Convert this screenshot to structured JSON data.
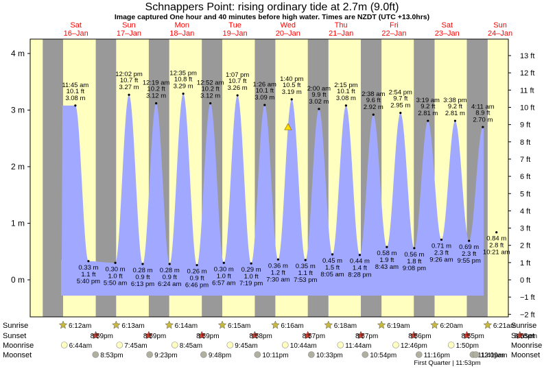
{
  "title": "Schnappers Point: rising  ordinary tide at 2.7m (9.0ft)",
  "subtitle": "Image captured One hour and 40 minutes before high water. Times are NZDT (UTC +13.0hrs)",
  "colors": {
    "day": "#ffffc0",
    "night": "#999999",
    "tide_fill": "#a0a8ff",
    "date_label": "#ff0000",
    "current_marker": "#ffdd00",
    "moon_symbol": "#b0b0a0",
    "moonrise_symbol": "#ffffc0",
    "sun_symbol": "#c8b840",
    "sunset_symbol": "#d04030"
  },
  "days": [
    {
      "dow": "Sat",
      "date": "16–Jan"
    },
    {
      "dow": "Sun",
      "date": "17–Jan"
    },
    {
      "dow": "Mon",
      "date": "18–Jan"
    },
    {
      "dow": "Tue",
      "date": "19–Jan"
    },
    {
      "dow": "Wed",
      "date": "20–Jan"
    },
    {
      "dow": "Thu",
      "date": "21–Jan"
    },
    {
      "dow": "Fri",
      "date": "22–Jan"
    },
    {
      "dow": "Sat",
      "date": "23–Jan"
    },
    {
      "dow": "Sun",
      "date": "24–Jan"
    }
  ],
  "chart_data": {
    "type": "area",
    "y_unit_left": "m",
    "y_unit_right": "ft",
    "ylim_m": [
      -0.55,
      4.25
    ],
    "left_ticks": [
      "0 m",
      "1 m",
      "2 m",
      "3 m",
      "4 m"
    ],
    "left_tick_values": [
      0,
      1,
      2,
      3,
      4
    ],
    "right_ticks": [
      "−2 ft",
      "−1 ft",
      "0 ft",
      "1 ft",
      "2 ft",
      "3 ft",
      "4 ft",
      "5 ft",
      "6 ft",
      "7 ft",
      "8 ft",
      "9 ft",
      "10 ft",
      "11 ft",
      "12 ft",
      "13 ft"
    ],
    "right_tick_values_ft": [
      -2,
      -1,
      0,
      1,
      2,
      3,
      4,
      5,
      6,
      7,
      8,
      9,
      10,
      11,
      12,
      13
    ],
    "high_tides": [
      {
        "day": 0,
        "time": "11:45 am",
        "ft": "10.1 ft",
        "m": "3.08 m",
        "value": 3.08,
        "hour": 11.75
      },
      {
        "day": 1,
        "time": "12:02 pm",
        "ft": "10.7 ft",
        "m": "3.27 m",
        "value": 3.27,
        "hour": 12.03
      },
      {
        "day": 2,
        "time": "12:19 am",
        "ft": "10.2 ft",
        "m": "3.12 m",
        "value": 3.12,
        "hour": 0.32
      },
      {
        "day": 2,
        "time": "12:35 pm",
        "ft": "10.8 ft",
        "m": "3.29 m",
        "value": 3.29,
        "hour": 12.58
      },
      {
        "day": 3,
        "time": "12:52 am",
        "ft": "10.2 ft",
        "m": "3.12 m",
        "value": 3.12,
        "hour": 0.87
      },
      {
        "day": 3,
        "time": "1:07 pm",
        "ft": "10.7 ft",
        "m": "3.26 m",
        "value": 3.26,
        "hour": 13.12
      },
      {
        "day": 4,
        "time": "1:26 am",
        "ft": "10.1 ft",
        "m": "3.09 m",
        "value": 3.09,
        "hour": 1.43
      },
      {
        "day": 4,
        "time": "1:40 pm",
        "ft": "10.5 ft",
        "m": "3.19 m",
        "value": 3.19,
        "hour": 13.67
      },
      {
        "day": 5,
        "time": "2:00 am",
        "ft": "9.9 ft",
        "m": "3.02 m",
        "value": 3.02,
        "hour": 2.0
      },
      {
        "day": 5,
        "time": "2:15 pm",
        "ft": "10.1 ft",
        "m": "3.08 m",
        "value": 3.08,
        "hour": 14.25
      },
      {
        "day": 6,
        "time": "2:38 am",
        "ft": "9.6 ft",
        "m": "2.92 m",
        "value": 2.92,
        "hour": 2.63
      },
      {
        "day": 6,
        "time": "2:54 pm",
        "ft": "9.7 ft",
        "m": "2.95 m",
        "value": 2.95,
        "hour": 14.9
      },
      {
        "day": 7,
        "time": "3:19 am",
        "ft": "9.2 ft",
        "m": "2.81 m",
        "value": 2.81,
        "hour": 3.32
      },
      {
        "day": 7,
        "time": "3:38 pm",
        "ft": "9.2 ft",
        "m": "2.81 m",
        "value": 2.81,
        "hour": 15.63
      },
      {
        "day": 8,
        "time": "4:11 am",
        "ft": "8.9 ft",
        "m": "2.70 m",
        "value": 2.7,
        "hour": 4.18
      }
    ],
    "low_tides": [
      {
        "day": 0,
        "time": "5:40 pm",
        "ft": "1.1 ft",
        "m": "0.33 m",
        "value": 0.33,
        "hour": 17.67
      },
      {
        "day": 1,
        "time": "5:50 am",
        "ft": "1.0 ft",
        "m": "0.30 m",
        "value": 0.3,
        "hour": 5.83
      },
      {
        "day": 1,
        "time": "6:13 pm",
        "ft": "0.9 ft",
        "m": "0.28 m",
        "value": 0.28,
        "hour": 18.22
      },
      {
        "day": 2,
        "time": "6:24 am",
        "ft": "0.9 ft",
        "m": "0.28 m",
        "value": 0.28,
        "hour": 6.4
      },
      {
        "day": 2,
        "time": "6:46 pm",
        "ft": "0.9 ft",
        "m": "0.26 m",
        "value": 0.26,
        "hour": 18.77
      },
      {
        "day": 3,
        "time": "6:57 am",
        "ft": "1.0 ft",
        "m": "0.30 m",
        "value": 0.3,
        "hour": 6.95
      },
      {
        "day": 3,
        "time": "7:19 pm",
        "ft": "1.0 ft",
        "m": "0.29 m",
        "value": 0.29,
        "hour": 19.32
      },
      {
        "day": 4,
        "time": "7:30 am",
        "ft": "1.2 ft",
        "m": "0.36 m",
        "value": 0.36,
        "hour": 7.5
      },
      {
        "day": 4,
        "time": "7:53 pm",
        "ft": "1.1 ft",
        "m": "0.35 m",
        "value": 0.35,
        "hour": 19.88
      },
      {
        "day": 5,
        "time": "8:05 am",
        "ft": "1.5 ft",
        "m": "0.45 m",
        "value": 0.45,
        "hour": 8.08
      },
      {
        "day": 5,
        "time": "8:28 pm",
        "ft": "1.4 ft",
        "m": "0.44 m",
        "value": 0.44,
        "hour": 20.47
      },
      {
        "day": 6,
        "time": "8:43 am",
        "ft": "1.9 ft",
        "m": "0.58 m",
        "value": 0.58,
        "hour": 8.72
      },
      {
        "day": 6,
        "time": "9:08 pm",
        "ft": "1.8 ft",
        "m": "0.56 m",
        "value": 0.56,
        "hour": 21.13
      },
      {
        "day": 7,
        "time": "9:26 am",
        "ft": "2.3 ft",
        "m": "0.71 m",
        "value": 0.71,
        "hour": 9.43
      },
      {
        "day": 7,
        "time": "9:55 pm",
        "ft": "2.3 ft",
        "m": "0.69 m",
        "value": 0.69,
        "hour": 21.92
      },
      {
        "day": 8,
        "time": "10:21 am",
        "ft": "2.8 ft",
        "m": "0.84 m",
        "value": 0.84,
        "hour": 10.35
      }
    ],
    "current": {
      "day": 4,
      "hour": 12.0,
      "value": 2.7
    }
  },
  "sun_moon": {
    "row_labels": {
      "sunrise": "Sunrise",
      "sunset": "Sunset",
      "moonrise": "Moonrise",
      "moonset": "Moonset"
    },
    "sunrise": [
      "6:12am",
      "6:13am",
      "6:14am",
      "6:15am",
      "6:16am",
      "6:18am",
      "6:19am",
      "6:20am",
      "6:21am"
    ],
    "sunset": [
      "8:59pm",
      "8:59pm",
      "8:59pm",
      "8:58pm",
      "8:57pm",
      "8:57pm",
      "8:56pm",
      "8:55pm",
      "8:55pm"
    ],
    "moonrise": [
      "6:44am",
      "7:45am",
      "8:45am",
      "9:45am",
      "10:44am",
      "11:44am",
      "12:46pm",
      "1:50pm"
    ],
    "moonset": [
      "8:53pm",
      "9:23pm",
      "9:48pm",
      "10:11pm",
      "10:33pm",
      "10:54pm",
      "11:16pm",
      "11:41pm",
      "12:09am"
    ],
    "phase_note": "First Quarter | 11:53pm"
  }
}
